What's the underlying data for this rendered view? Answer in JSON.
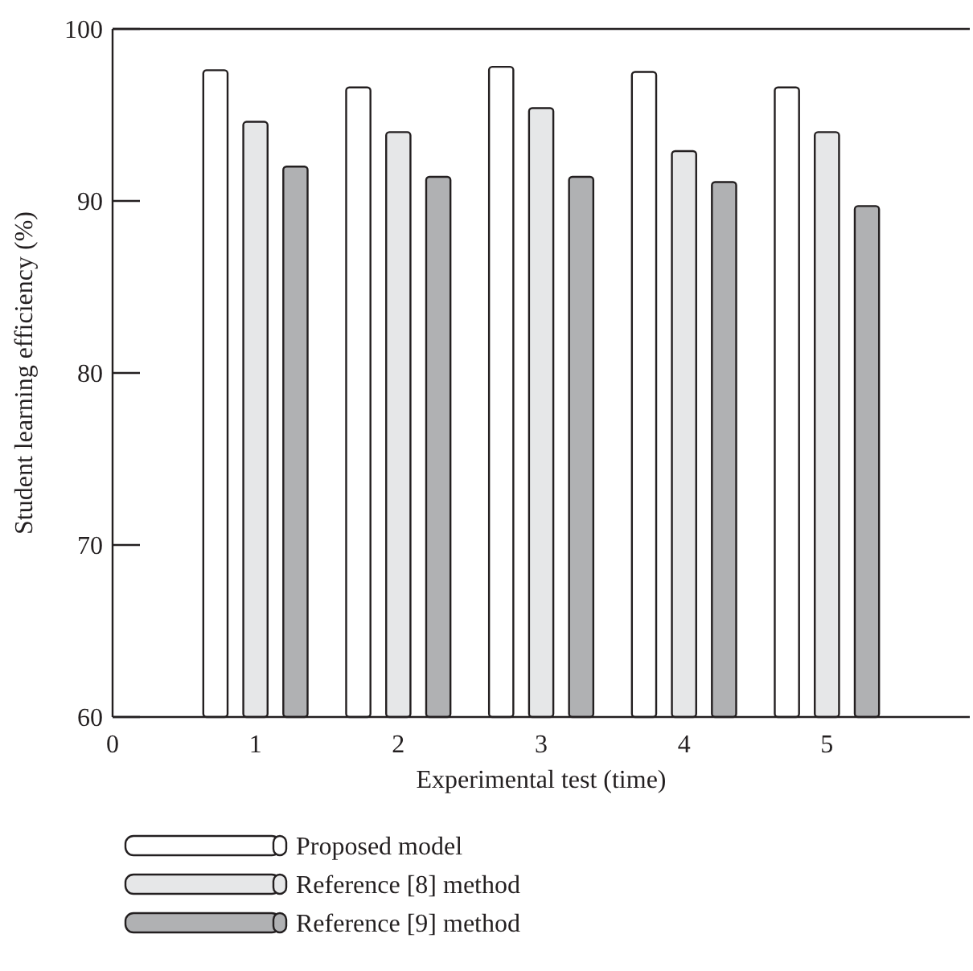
{
  "chart_data": {
    "type": "bar",
    "xlabel": "Experimental test (time)",
    "ylabel": "Student learning efficiency (%)",
    "x": [
      1,
      2,
      3,
      4,
      5
    ],
    "xlim": [
      0,
      6
    ],
    "xticks": [
      0,
      1,
      2,
      3,
      4,
      5
    ],
    "ylim": [
      60,
      100
    ],
    "yticks": [
      60,
      70,
      80,
      90,
      100
    ],
    "series": [
      {
        "name": "Proposed model",
        "color": "#ffffff",
        "values": [
          97.6,
          96.6,
          97.8,
          97.5,
          96.6
        ]
      },
      {
        "name": "Reference [8] method",
        "color": "#e6e7e8",
        "values": [
          94.6,
          94.0,
          95.4,
          92.9,
          94.0
        ]
      },
      {
        "name": "Reference [9] method",
        "color": "#b0b1b3",
        "values": [
          92.0,
          91.4,
          91.4,
          91.1,
          89.7
        ]
      }
    ],
    "grid": false,
    "legend": "bottom"
  }
}
